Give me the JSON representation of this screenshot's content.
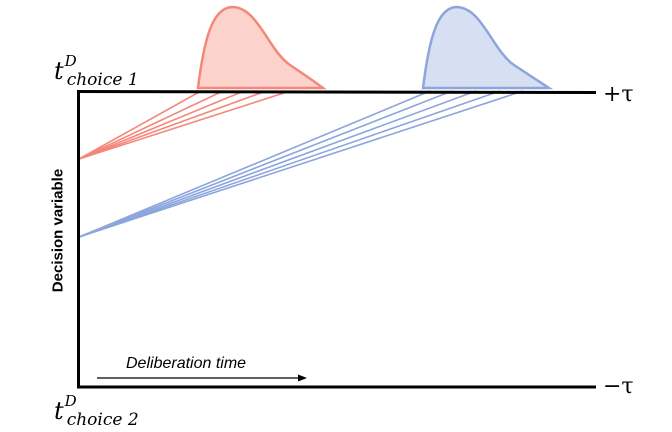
{
  "labels": {
    "choice1": {
      "base": "t",
      "sup": "D",
      "sub": "choice 1"
    },
    "choice2": {
      "base": "t",
      "sup": "D",
      "sub": "choice 2"
    },
    "plus_tau": "+τ",
    "minus_tau": "−τ",
    "y_axis": "Decision variable",
    "x_axis": "Deliberation time"
  },
  "colors": {
    "red": "#f4877a",
    "red_fill": "#fcd2cc",
    "blue": "#8ca6dc",
    "blue_fill": "#d6e0f2",
    "axis": "#000000"
  }
}
